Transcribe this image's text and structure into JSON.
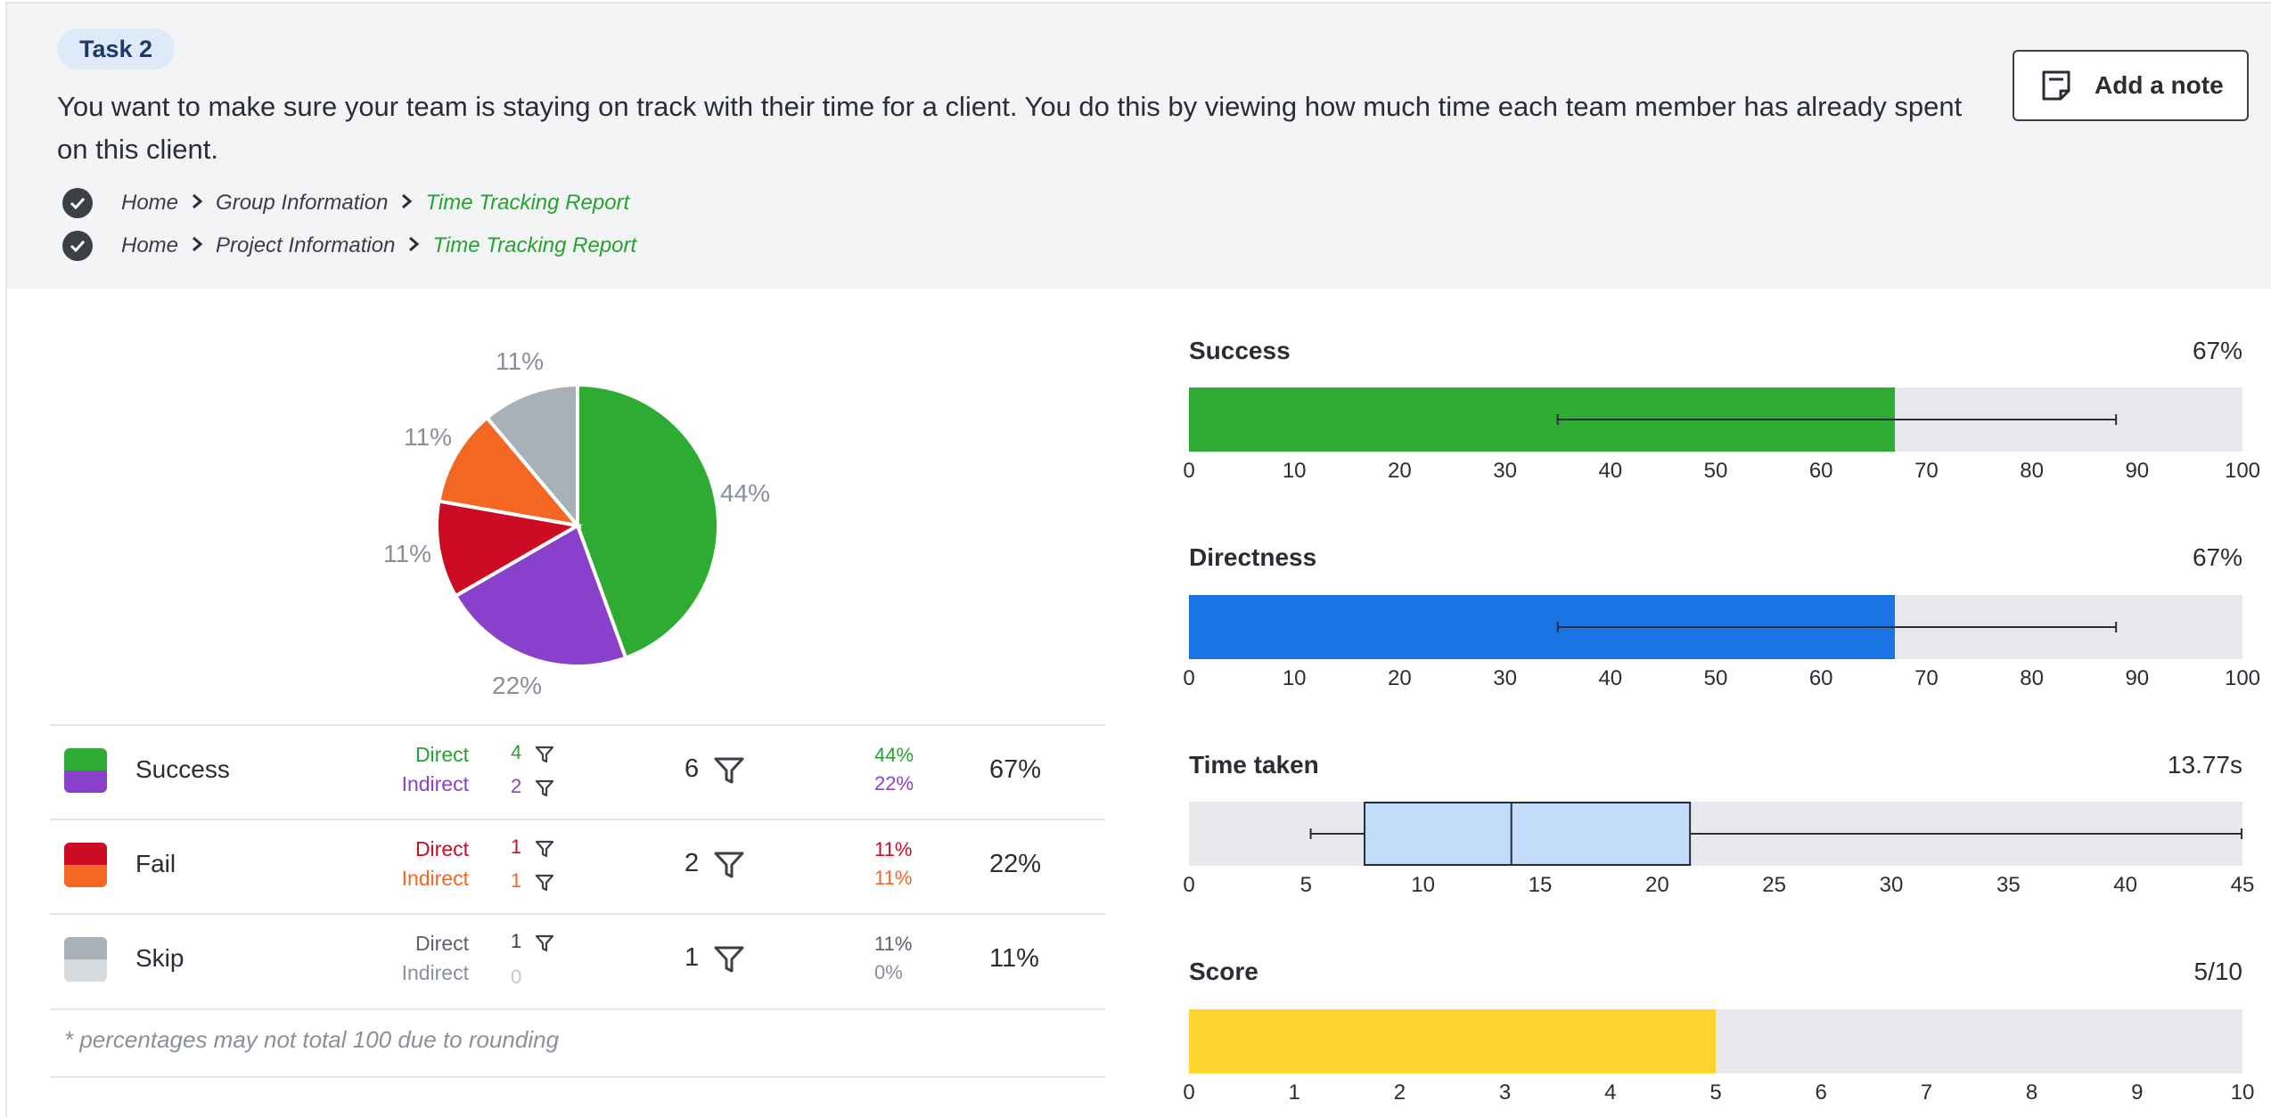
{
  "task": {
    "badge": "Task 2",
    "description": "You want to make sure your team is staying on track with their time for a client. You do this by viewing how much time each team member has already spent on this client.",
    "add_note_label": "Add a note",
    "paths": [
      {
        "home": "Home",
        "middle": "Group Information",
        "target": "Time Tracking Report"
      },
      {
        "home": "Home",
        "middle": "Project Information",
        "target": "Time Tracking Report"
      }
    ]
  },
  "colors": {
    "success_direct": "#2eab32",
    "success_indirect": "#8941cc",
    "fail_direct": "#cc0b24",
    "fail_indirect": "#f46722",
    "skip_direct": "#a8b0b8",
    "skip_indirect": "#d6d9dd",
    "directness_bar": "#1a73e3",
    "score_bar": "#ffd530",
    "box_fill": "#c3dcf9"
  },
  "chart_data": [
    {
      "type": "pie",
      "categories": [
        "Success direct",
        "Success indirect",
        "Fail direct",
        "Fail indirect",
        "Skip direct"
      ],
      "values": [
        44,
        22,
        11,
        11,
        11
      ],
      "labels": [
        "44%",
        "22%",
        "11%",
        "11%",
        "11%"
      ]
    },
    {
      "type": "bar",
      "title": "Success",
      "value_label": "67%",
      "value": 67,
      "error_low": 35,
      "error_high": 88,
      "xlim": [
        0,
        100
      ],
      "ticks": [
        "0",
        "10",
        "20",
        "30",
        "40",
        "50",
        "60",
        "70",
        "80",
        "90",
        "100"
      ]
    },
    {
      "type": "bar",
      "title": "Directness",
      "value_label": "67%",
      "value": 67,
      "error_low": 35,
      "error_high": 88,
      "xlim": [
        0,
        100
      ],
      "ticks": [
        "0",
        "10",
        "20",
        "30",
        "40",
        "50",
        "60",
        "70",
        "80",
        "90",
        "100"
      ]
    },
    {
      "type": "boxplot",
      "title": "Time taken",
      "value_label": "13.77s",
      "min": 5.2,
      "q1": 7.5,
      "median": 13.77,
      "q3": 21.4,
      "max": 45,
      "xlim": [
        0,
        45
      ],
      "ticks": [
        "0",
        "5",
        "10",
        "15",
        "20",
        "25",
        "30",
        "35",
        "40",
        "45"
      ]
    },
    {
      "type": "bar",
      "title": "Score",
      "value_label": "5/10",
      "value": 5,
      "xlim": [
        0,
        10
      ],
      "ticks": [
        "0",
        "1",
        "2",
        "3",
        "4",
        "5",
        "6",
        "7",
        "8",
        "9",
        "10"
      ]
    }
  ],
  "table": {
    "direct_label": "Direct",
    "indirect_label": "Indirect",
    "rows": [
      {
        "name": "Success",
        "direct": "4",
        "indirect": "2",
        "total": "6",
        "direct_pct": "44%",
        "indirect_pct": "22%",
        "row_pct": "67%"
      },
      {
        "name": "Fail",
        "direct": "1",
        "indirect": "1",
        "total": "2",
        "direct_pct": "11%",
        "indirect_pct": "11%",
        "row_pct": "22%"
      },
      {
        "name": "Skip",
        "direct": "1",
        "indirect": "0",
        "total": "1",
        "direct_pct": "11%",
        "indirect_pct": "0%",
        "row_pct": "11%"
      }
    ],
    "footnote": "* percentages may not total 100 due to rounding"
  }
}
